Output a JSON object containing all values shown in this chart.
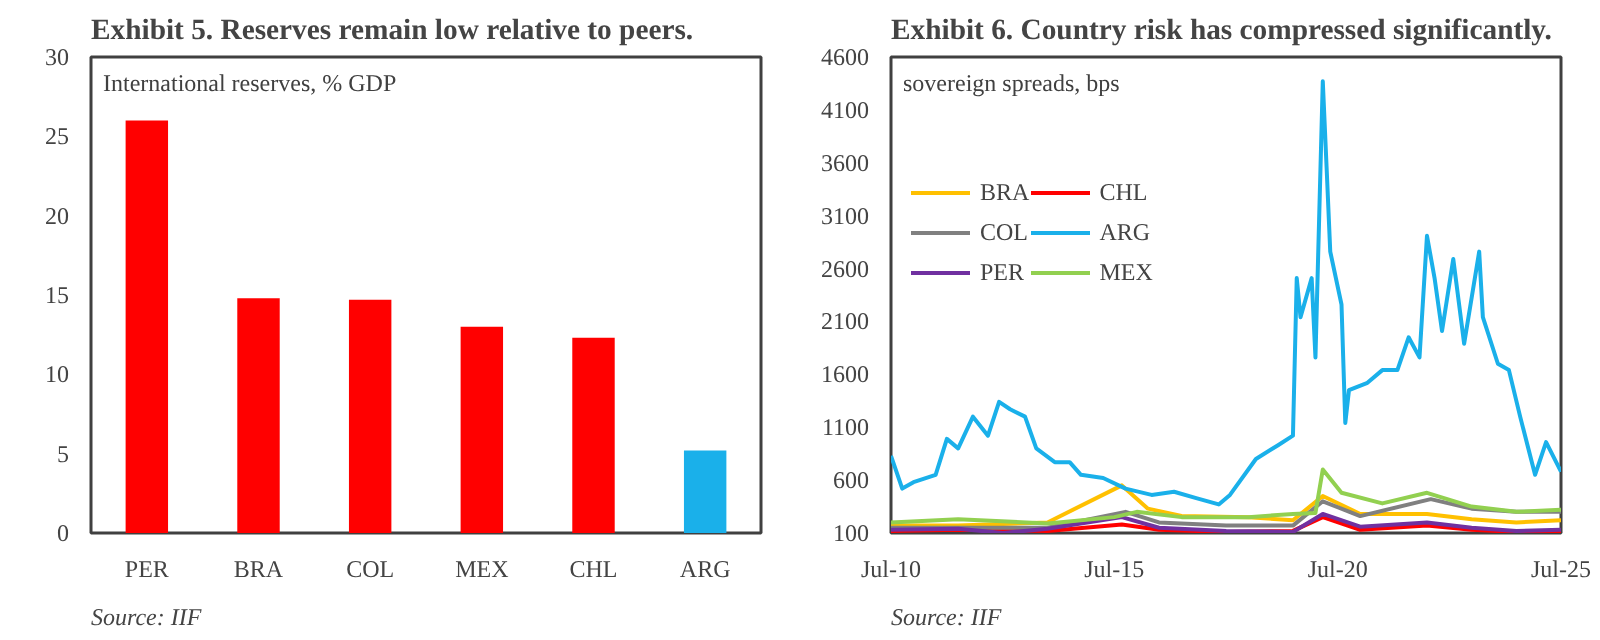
{
  "chart_data": [
    {
      "type": "bar",
      "title": "Exhibit 5. Reserves remain low relative to peers.",
      "categories": [
        "PER",
        "BRA",
        "COL",
        "MEX",
        "CHL",
        "ARG"
      ],
      "values": [
        26,
        14.8,
        14.7,
        13,
        12.3,
        5.2
      ],
      "colors": [
        "#ff0000",
        "#ff0000",
        "#ff0000",
        "#ff0000",
        "#ff0000",
        "#1ab0ea"
      ],
      "ylim": [
        0,
        30
      ],
      "yticks": [
        0,
        5,
        10,
        15,
        20,
        25,
        30
      ],
      "grid": false,
      "annotations": [
        "International reserves, % GDP",
        "Source: IIF"
      ]
    },
    {
      "type": "line",
      "title": "Exhibit 6. Country risk has compressed significantly.",
      "xlim": [
        "2010-07",
        "2025-07"
      ],
      "xticks": [
        {
          "value": "2010-07",
          "label": "Jul-10"
        },
        {
          "value": "2015-07",
          "label": "Jul-15"
        },
        {
          "value": "2020-07",
          "label": "Jul-20"
        },
        {
          "value": "2025-07",
          "label": "Jul-25"
        }
      ],
      "ylim": [
        100,
        4600
      ],
      "yticks": [
        100,
        600,
        1100,
        1600,
        2100,
        2600,
        3100,
        3600,
        4100,
        4600
      ],
      "grid": false,
      "legend": "top left",
      "annotations": [
        "sovereign spreads, bps",
        "Source: IIF"
      ],
      "series": [
        {
          "name": "BRA",
          "color": "#ffc000",
          "x": [
            "2010-07",
            "2012-01",
            "2014-01",
            "2015-09",
            "2016-04",
            "2017-01",
            "2018-07",
            "2019-07",
            "2020-03",
            "2021-01",
            "2022-07",
            "2023-07",
            "2024-07",
            "2025-07"
          ],
          "values": [
            170,
            170,
            200,
            550,
            330,
            260,
            250,
            220,
            450,
            280,
            280,
            230,
            200,
            220
          ]
        },
        {
          "name": "CHL",
          "color": "#ff0000",
          "x": [
            "2010-07",
            "2012-01",
            "2014-01",
            "2015-09",
            "2016-07",
            "2018-01",
            "2019-07",
            "2020-03",
            "2021-01",
            "2022-07",
            "2023-07",
            "2024-07",
            "2025-07"
          ],
          "values": [
            120,
            130,
            120,
            180,
            130,
            110,
            120,
            250,
            130,
            170,
            130,
            110,
            110
          ]
        },
        {
          "name": "COL",
          "color": "#808080",
          "x": [
            "2010-07",
            "2012-01",
            "2014-01",
            "2015-10",
            "2016-07",
            "2018-01",
            "2019-07",
            "2020-03",
            "2021-01",
            "2022-08",
            "2023-07",
            "2024-07",
            "2025-07"
          ],
          "values": [
            150,
            150,
            150,
            300,
            200,
            170,
            170,
            400,
            260,
            420,
            330,
            300,
            300
          ]
        },
        {
          "name": "ARG",
          "color": "#1ab0ea",
          "x": [
            "2010-07",
            "2010-10",
            "2011-01",
            "2011-07",
            "2011-10",
            "2012-01",
            "2012-05",
            "2012-09",
            "2012-12",
            "2013-03",
            "2013-07",
            "2013-10",
            "2014-03",
            "2014-07",
            "2014-10",
            "2015-04",
            "2015-10",
            "2016-05",
            "2016-11",
            "2017-05",
            "2017-11",
            "2018-02",
            "2018-09",
            "2019-03",
            "2019-07",
            "2019-08",
            "2019-09",
            "2019-12",
            "2020-01",
            "2020-03",
            "2020-04",
            "2020-05",
            "2020-08",
            "2020-09",
            "2020-10",
            "2021-03",
            "2021-07",
            "2021-11",
            "2022-02",
            "2022-05",
            "2022-07",
            "2022-09",
            "2022-11",
            "2023-02",
            "2023-05",
            "2023-09",
            "2023-10",
            "2024-02",
            "2024-05",
            "2024-08",
            "2024-12",
            "2025-03",
            "2025-07"
          ],
          "values": [
            830,
            520,
            580,
            650,
            990,
            900,
            1200,
            1020,
            1340,
            1270,
            1200,
            900,
            770,
            770,
            650,
            620,
            520,
            460,
            490,
            430,
            370,
            460,
            800,
            930,
            1020,
            2510,
            2140,
            2510,
            1760,
            4370,
            3560,
            2760,
            2260,
            1140,
            1450,
            1520,
            1640,
            1640,
            1950,
            1760,
            2910,
            2510,
            2010,
            2690,
            1890,
            2760,
            2140,
            1700,
            1640,
            1200,
            650,
            960,
            680
          ]
        },
        {
          "name": "PER",
          "color": "#7030a0",
          "x": [
            "2010-07",
            "2012-01",
            "2013-01",
            "2014-01",
            "2015-09",
            "2016-07",
            "2018-01",
            "2019-07",
            "2020-03",
            "2021-01",
            "2022-07",
            "2023-07",
            "2024-07",
            "2025-07"
          ],
          "values": [
            130,
            140,
            100,
            140,
            250,
            150,
            120,
            110,
            280,
            160,
            200,
            150,
            120,
            130
          ]
        },
        {
          "name": "MEX",
          "color": "#92d050",
          "x": [
            "2010-07",
            "2012-01",
            "2014-01",
            "2015-07",
            "2016-01",
            "2017-01",
            "2018-07",
            "2019-07",
            "2020-01",
            "2020-03",
            "2020-08",
            "2021-07",
            "2022-07",
            "2023-07",
            "2024-07",
            "2025-07"
          ],
          "values": [
            200,
            230,
            190,
            250,
            300,
            250,
            250,
            280,
            290,
            700,
            480,
            380,
            480,
            350,
            300,
            320
          ]
        }
      ]
    }
  ]
}
